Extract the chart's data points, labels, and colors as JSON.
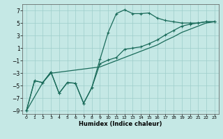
{
  "title": "",
  "xlabel": "Humidex (Indice chaleur)",
  "xlim": [
    -0.5,
    23.5
  ],
  "ylim": [
    -9.5,
    8.0
  ],
  "yticks": [
    -9,
    -7,
    -5,
    -3,
    -1,
    1,
    3,
    5,
    7
  ],
  "xticks": [
    0,
    1,
    2,
    3,
    4,
    5,
    6,
    7,
    8,
    9,
    10,
    11,
    12,
    13,
    14,
    15,
    16,
    17,
    18,
    19,
    20,
    21,
    22,
    23
  ],
  "bg_color": "#c5e8e5",
  "line_color": "#1a6b5a",
  "grid_color": "#9ececa",
  "line_jagged_x": [
    0,
    1,
    2,
    3,
    4,
    5,
    6,
    7,
    8,
    9,
    10,
    11,
    12,
    13,
    14,
    15,
    16,
    17,
    18,
    19,
    20,
    21,
    22,
    23
  ],
  "line_jagged_y": [
    -9,
    -4.2,
    -4.5,
    -2.8,
    -6.2,
    -4.5,
    -4.6,
    -7.8,
    -5.3,
    -0.8,
    3.5,
    6.5,
    7.1,
    6.5,
    6.5,
    6.6,
    5.8,
    5.4,
    5.2,
    5.0,
    5.0,
    5.0,
    5.2,
    5.2
  ],
  "line_mid_x": [
    0,
    1,
    2,
    3,
    4,
    5,
    6,
    7,
    8,
    9,
    10,
    11,
    12,
    13,
    14,
    15,
    16,
    17,
    18,
    19,
    20,
    21,
    22,
    23
  ],
  "line_mid_y": [
    -9,
    -4.2,
    -4.5,
    -2.8,
    -6.2,
    -4.5,
    -4.6,
    -7.8,
    -5.3,
    -1.5,
    -0.9,
    -0.5,
    0.8,
    1.0,
    1.2,
    1.7,
    2.3,
    3.1,
    3.8,
    4.5,
    4.8,
    5.0,
    5.2,
    5.2
  ],
  "line_straight_x": [
    0,
    2,
    3,
    9,
    10,
    11,
    12,
    13,
    14,
    15,
    16,
    17,
    18,
    19,
    20,
    21,
    22,
    23
  ],
  "line_straight_y": [
    -9,
    -4.5,
    -3.0,
    -2.0,
    -1.5,
    -1.0,
    -0.5,
    0.0,
    0.5,
    1.0,
    1.5,
    2.2,
    2.8,
    3.5,
    4.0,
    4.5,
    5.0,
    5.2
  ]
}
